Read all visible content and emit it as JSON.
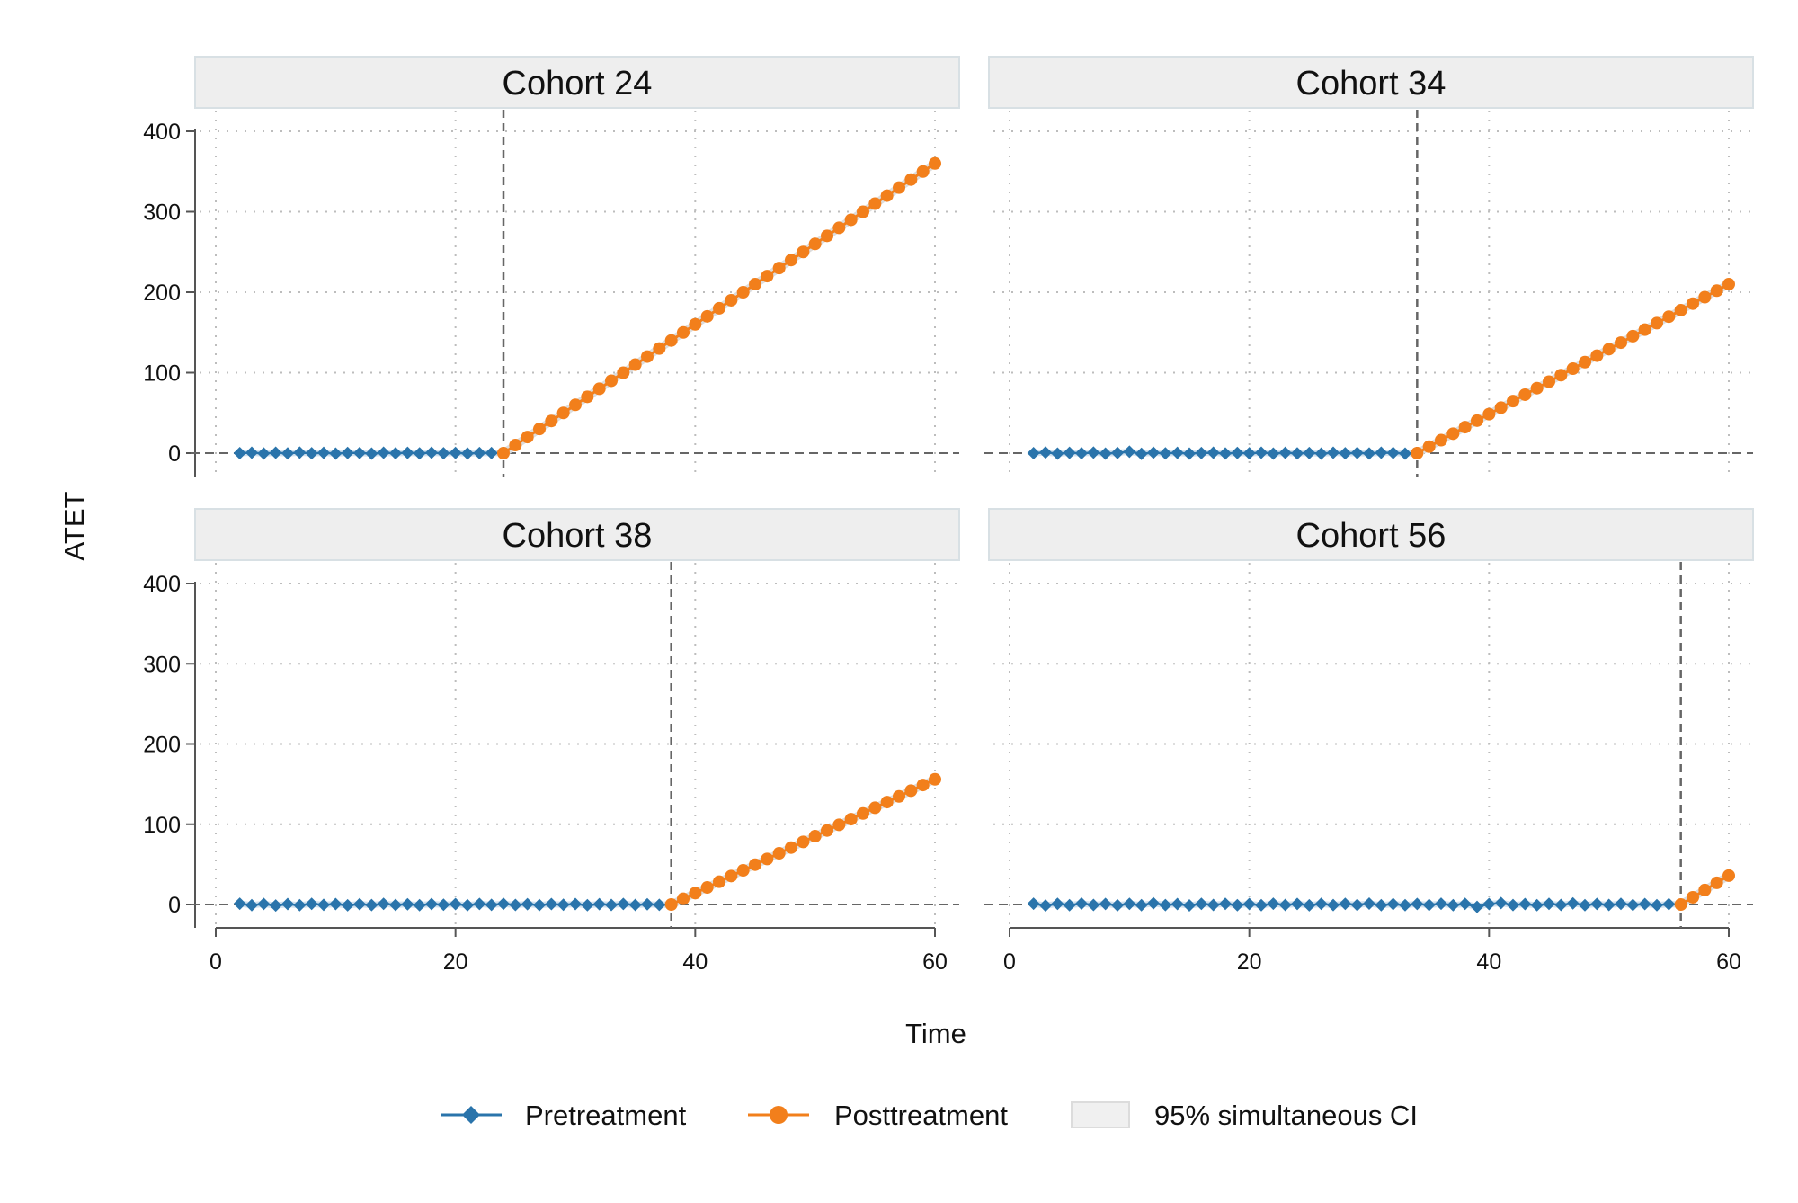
{
  "chart_data": {
    "type": "line",
    "y_axis_title": "ATET",
    "x_axis_title": "Time",
    "y_ticks": [
      0,
      100,
      200,
      300,
      400
    ],
    "x_ticks": [
      0,
      20,
      40,
      60
    ],
    "xlim": [
      0,
      60
    ],
    "ylim": [
      0,
      400
    ],
    "grid": true,
    "legend_position": "bottom",
    "legend": [
      {
        "key": "pre",
        "label": "Pretreatment",
        "color": "#2a74ab",
        "marker": "diamond"
      },
      {
        "key": "post",
        "label": "Posttreatment",
        "color": "#f27f1b",
        "marker": "circle"
      },
      {
        "key": "ci",
        "label": "95% simultaneous CI",
        "color": "#f0f0f0",
        "marker": "box"
      }
    ],
    "colors": {
      "pre": "#2a74ab",
      "post": "#f27f1b",
      "ci": "#dcdcdc",
      "strip": "#eeeeee",
      "ref_line": "#666666"
    },
    "panels": [
      {
        "title": "Cohort 24",
        "treatment_time": 24,
        "pre_x": [
          2,
          24
        ],
        "pre_y": [
          0,
          0.6,
          -0.4,
          0.5,
          -0.3,
          0.7,
          -0.2,
          0.4,
          -0.5,
          0.3,
          0.2,
          -0.6,
          0.5,
          -0.1,
          0.4,
          -0.3,
          0.6,
          -0.2,
          0.3,
          -0.4,
          0.1,
          0.2,
          0
        ],
        "post_x": [
          24,
          60
        ],
        "post_y": [
          0,
          360
        ]
      },
      {
        "title": "Cohort 34",
        "treatment_time": 34,
        "pre_x": [
          2,
          34
        ],
        "pre_y": [
          0,
          0.8,
          -0.6,
          0.4,
          -0.2,
          0.7,
          -0.5,
          0.3,
          1.8,
          -0.8,
          0.6,
          -0.3,
          0.4,
          -0.6,
          0.2,
          0.5,
          -0.4,
          0.3,
          -0.2,
          0.6,
          -0.5,
          0.4,
          -0.3,
          0.2,
          -0.6,
          0.5,
          -0.2,
          0.3,
          -0.4,
          0.6,
          0.3,
          -0.5,
          0
        ],
        "post_x": [
          34,
          60
        ],
        "post_y": [
          0,
          210
        ]
      },
      {
        "title": "Cohort 38",
        "treatment_time": 38,
        "pre_x": [
          2,
          38
        ],
        "pre_y": [
          1,
          -0.8,
          0.7,
          -1.2,
          0.5,
          -0.9,
          0.8,
          -0.4,
          0.6,
          -1,
          0.4,
          -0.7,
          0.9,
          -0.5,
          0.3,
          -0.8,
          0.6,
          -0.3,
          0.5,
          -0.9,
          0.7,
          -0.4,
          0.8,
          -0.6,
          0.4,
          -0.7,
          0.5,
          -0.3,
          0.6,
          -0.8,
          0.4,
          -0.5,
          0.7,
          -0.6,
          0.3,
          -0.4,
          0
        ],
        "post_x": [
          38,
          60
        ],
        "post_y": [
          0,
          156
        ]
      },
      {
        "title": "Cohort 56",
        "treatment_time": 56,
        "pre_x": [
          2,
          56
        ],
        "pre_y": [
          1,
          -1.2,
          0.8,
          -0.9,
          1.1,
          -0.6,
          0.7,
          -1,
          0.9,
          -0.8,
          1.5,
          -0.7,
          0.6,
          -1.1,
          0.8,
          -0.5,
          0.9,
          -0.8,
          0.6,
          -0.9,
          1,
          -0.6,
          0.7,
          -1,
          0.8,
          -0.7,
          0.9,
          -0.5,
          1.1,
          -0.9,
          0.6,
          -0.8,
          0.7,
          -0.6,
          1,
          -0.9,
          0.8,
          -3,
          0.6,
          1.8,
          -0.7,
          0.5,
          -0.9,
          0.8,
          -0.6,
          1.4,
          -0.8,
          0.7,
          -0.6,
          0.9,
          -0.5,
          0.6,
          -0.8,
          0.4,
          0
        ],
        "post_x": [
          56,
          60
        ],
        "post_y": [
          0,
          36
        ]
      }
    ]
  }
}
